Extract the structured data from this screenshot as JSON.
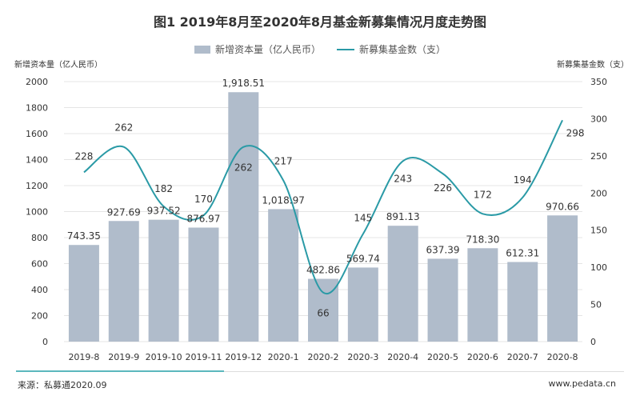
{
  "chart_data": {
    "type": "bar+line",
    "title": "图1  2019年8月至2020年8月基金新募集情况月度走势图",
    "categories": [
      "2019-8",
      "2019-9",
      "2019-10",
      "2019-11",
      "2019-12",
      "2020-1",
      "2020-2",
      "2020-3",
      "2020-4",
      "2020-5",
      "2020-6",
      "2020-7",
      "2020-8"
    ],
    "series": [
      {
        "name": "新增资本量（亿人民币）",
        "type": "bar",
        "axis": "left",
        "color": "#b0bccb",
        "values": [
          743.35,
          927.69,
          937.52,
          876.97,
          1918.51,
          1018.97,
          482.86,
          569.74,
          891.13,
          637.39,
          718.3,
          612.31,
          970.66
        ],
        "labels": [
          "743.35",
          "927.69",
          "937.52",
          "876.97",
          "1,918.51",
          "1,018.97",
          "482.86",
          "569.74",
          "891.13",
          "637.39",
          "718.30",
          "612.31",
          "970.66"
        ]
      },
      {
        "name": "新募集基金数（支）",
        "type": "line",
        "axis": "right",
        "color": "#2a9aa6",
        "smooth": true,
        "values": [
          228,
          262,
          182,
          170,
          262,
          217,
          66,
          145,
          243,
          226,
          172,
          194,
          298
        ]
      }
    ],
    "ylabel_left": "新增资本量（亿人民币）",
    "ylabel_right": "新募集基金数（支）",
    "ylim_left": [
      0,
      2000
    ],
    "yticks_left": [
      "0",
      "200",
      "400",
      "600",
      "800",
      "1000",
      "1200",
      "1400",
      "1600",
      "1800",
      "2000"
    ],
    "ylim_right": [
      0,
      350
    ],
    "yticks_right": [
      "0",
      "50",
      "100",
      "150",
      "200",
      "250",
      "300",
      "350"
    ],
    "grid": true,
    "legend": "top-center"
  },
  "footer": {
    "source": "来源：私募通2020.09",
    "site": "www.pedata.cn"
  }
}
